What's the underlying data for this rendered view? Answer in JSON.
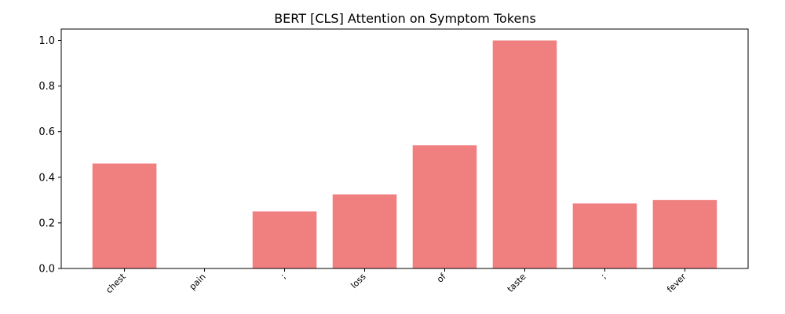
{
  "chart_data": {
    "type": "bar",
    "title": "BERT [CLS] Attention on Symptom Tokens",
    "categories": [
      "chest",
      "pain",
      ";",
      "loss",
      "of",
      "taste",
      ";",
      "fever"
    ],
    "values": [
      0.46,
      0.0,
      0.25,
      0.325,
      0.54,
      1.0,
      0.285,
      0.3
    ],
    "ylim": [
      0,
      1.05
    ],
    "yticks": [
      "0.0",
      "0.2",
      "0.4",
      "0.6",
      "0.8",
      "1.0"
    ],
    "xlabel": "",
    "ylabel": "",
    "grid": false,
    "bar_color": "#f08080"
  }
}
